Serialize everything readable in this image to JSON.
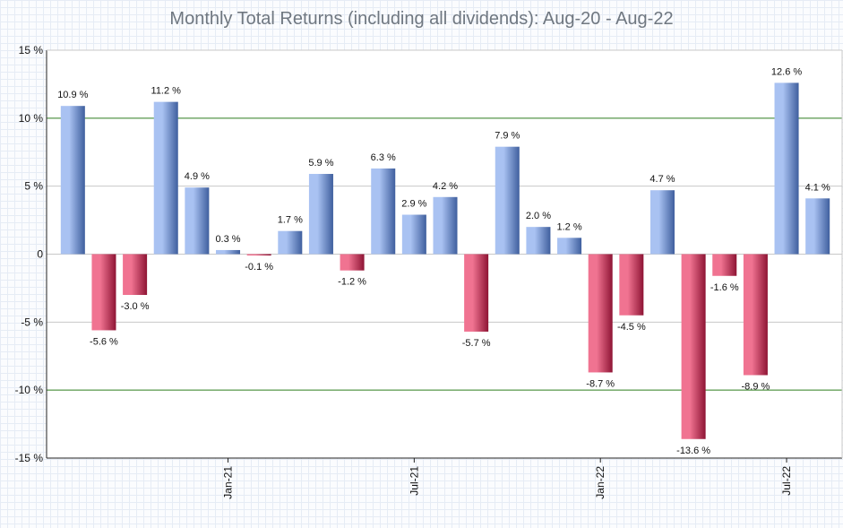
{
  "chart_data": {
    "type": "bar",
    "title": "Monthly Total Returns (including all dividends): Aug-20 - Aug-22",
    "xlabel": "",
    "ylabel": "",
    "ylim": [
      -15,
      15
    ],
    "yticks": [
      15,
      10,
      5,
      0,
      -5,
      -10,
      -15
    ],
    "ytick_labels": [
      "15 %",
      "10 %",
      "5 %",
      "0",
      "-5 %",
      "-10 %",
      "-15 %"
    ],
    "highlight_lines": [
      10,
      -10
    ],
    "x_tick_labels": [
      {
        "label": "Jan-21",
        "index": 5
      },
      {
        "label": "Jul-21",
        "index": 11
      },
      {
        "label": "Jan-22",
        "index": 17
      },
      {
        "label": "Jul-22",
        "index": 23
      }
    ],
    "values": [
      10.9,
      -5.6,
      -3.0,
      11.2,
      4.9,
      0.3,
      -0.1,
      1.7,
      5.9,
      -1.2,
      6.3,
      2.9,
      4.2,
      -5.7,
      7.9,
      2.0,
      1.2,
      -8.7,
      -4.5,
      4.7,
      -13.6,
      -1.6,
      -8.9,
      12.6,
      4.1
    ],
    "data_labels": [
      "10.9 %",
      "-5.6 %",
      "-3.0 %",
      "11.2 %",
      "4.9 %",
      "0.3 %",
      "-0.1 %",
      "1.7 %",
      "5.9 %",
      "-1.2 %",
      "6.3 %",
      "2.9 %",
      "4.2 %",
      "-5.7 %",
      "7.9 %",
      "2.0 %",
      "1.2 %",
      "-8.7 %",
      "-4.5 %",
      "4.7 %",
      "-13.6 %",
      "-1.6 %",
      "-8.9 %",
      "12.6 %",
      "4.1 %"
    ],
    "colors": {
      "positive_light": "#a9c2f2",
      "positive_dark": "#3f5f9e",
      "negative_light": "#f07391",
      "negative_dark": "#8e1434",
      "highlight_line": "#2e7d1f",
      "grid": "#c8c8c8",
      "axis": "#222222"
    }
  }
}
